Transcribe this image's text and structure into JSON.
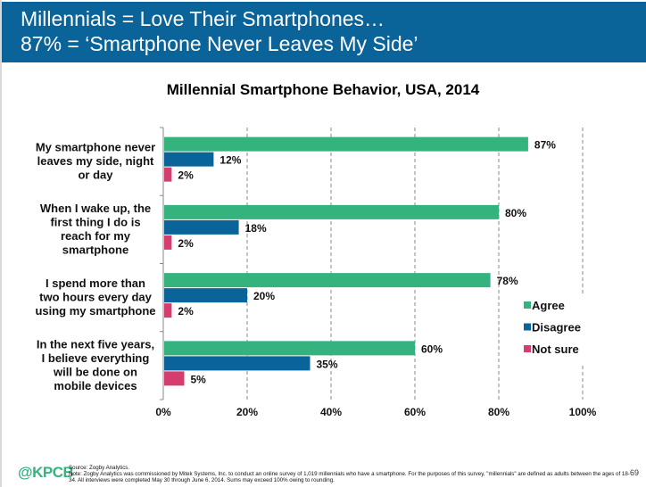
{
  "header": {
    "line1": "Millennials = Love Their Smartphones…",
    "line2": "87% = ‘Smartphone Never Leaves My Side’",
    "background": "#0a6399"
  },
  "chart_data": {
    "type": "bar",
    "orientation": "horizontal",
    "title": "Millennial Smartphone Behavior, USA, 2014",
    "xlabel": "",
    "ylabel": "",
    "xlim": [
      0,
      100
    ],
    "x_ticks": [
      "0%",
      "20%",
      "40%",
      "60%",
      "80%",
      "100%"
    ],
    "grid": "vertical dashed",
    "legend_position": "right",
    "categories": [
      [
        "My smartphone never",
        "leaves my side, night",
        "or day"
      ],
      [
        "When I wake up, the",
        "first thing I do is",
        "reach for my",
        "smartphone"
      ],
      [
        "I spend more than",
        "two hours every day",
        "using my smartphone"
      ],
      [
        "In the next five years,",
        "I believe everything",
        "will be done on",
        "mobile devices"
      ]
    ],
    "series": [
      {
        "name": "Agree",
        "color": "#34b37e",
        "values": [
          87,
          80,
          78,
          60
        ]
      },
      {
        "name": "Disagree",
        "color": "#0a6399",
        "values": [
          12,
          18,
          20,
          35
        ]
      },
      {
        "name": "Not sure",
        "color": "#d53d6e",
        "values": [
          2,
          2,
          2,
          5
        ]
      }
    ],
    "value_suffix": "%"
  },
  "footer": {
    "logo": "@KPCB",
    "source": "Source: Zogby Analytics.",
    "note": "Note: Zogby Analytics was commissioned by Mitek Systems, Inc. to conduct an online survey of 1,019 millennials who have a smartphone. For the purposes of this survey, \"millennials\" are defined as adults between the ages of 18-34. All interviews were completed May 30 through June 6, 2014. Sums may exceed 100% owing to rounding.",
    "page_number": "69"
  }
}
